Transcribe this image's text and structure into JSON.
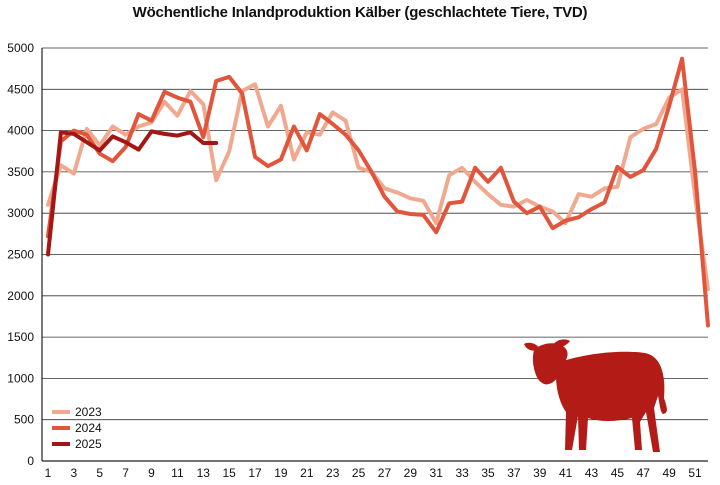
{
  "chart_data": {
    "type": "line",
    "title": "Wöchentliche Inlandproduktion Kälber (geschlachtete Tiere, TVD)",
    "xlabel": "",
    "ylabel": "",
    "ylim": [
      0,
      5000
    ],
    "xlim": [
      1,
      52
    ],
    "y_ticks": [
      0,
      500,
      1000,
      1500,
      2000,
      2500,
      3000,
      3500,
      4000,
      4500,
      5000
    ],
    "x_ticks": [
      1,
      3,
      5,
      7,
      9,
      11,
      13,
      15,
      17,
      19,
      21,
      23,
      25,
      27,
      29,
      31,
      33,
      35,
      37,
      39,
      41,
      43,
      45,
      47,
      49,
      51
    ],
    "grid": "horizontal",
    "legend_position": "bottom-left",
    "series": [
      {
        "name": "2023",
        "color": "#f0a98f",
        "x": [
          1,
          2,
          3,
          4,
          5,
          6,
          7,
          8,
          9,
          10,
          11,
          12,
          13,
          14,
          15,
          16,
          17,
          18,
          19,
          20,
          21,
          22,
          23,
          24,
          25,
          26,
          27,
          28,
          29,
          30,
          31,
          32,
          33,
          34,
          35,
          36,
          37,
          38,
          39,
          40,
          41,
          42,
          43,
          44,
          45,
          46,
          47,
          48,
          49,
          50,
          51,
          52
        ],
        "y": [
          3100,
          3580,
          3480,
          4020,
          3820,
          4050,
          3950,
          4050,
          4100,
          4350,
          4180,
          4480,
          4320,
          3400,
          3750,
          4480,
          4560,
          4050,
          4300,
          3650,
          3980,
          3950,
          4220,
          4120,
          3550,
          3500,
          3300,
          3250,
          3180,
          3150,
          2880,
          3460,
          3550,
          3380,
          3230,
          3100,
          3080,
          3160,
          3080,
          3020,
          2880,
          3230,
          3200,
          3300,
          3320,
          3920,
          4020,
          4080,
          4400,
          4500,
          3200,
          2080
        ]
      },
      {
        "name": "2024",
        "color": "#e0553b",
        "x": [
          1,
          2,
          3,
          4,
          5,
          6,
          7,
          8,
          9,
          10,
          11,
          12,
          13,
          14,
          15,
          16,
          17,
          18,
          19,
          20,
          21,
          22,
          23,
          24,
          25,
          26,
          27,
          28,
          29,
          30,
          31,
          32,
          33,
          34,
          35,
          36,
          37,
          38,
          39,
          40,
          41,
          42,
          43,
          44,
          45,
          46,
          47,
          48,
          49,
          50,
          51,
          52
        ],
        "y": [
          2720,
          3870,
          4000,
          3950,
          3720,
          3630,
          3800,
          4200,
          4120,
          4470,
          4400,
          4350,
          3920,
          4600,
          4650,
          4450,
          3680,
          3570,
          3650,
          4050,
          3760,
          4200,
          4080,
          3950,
          3760,
          3500,
          3200,
          3020,
          2990,
          2980,
          2770,
          3120,
          3140,
          3550,
          3380,
          3550,
          3140,
          3000,
          3080,
          2820,
          2910,
          2950,
          3050,
          3130,
          3560,
          3440,
          3520,
          3780,
          4300,
          4870,
          3500,
          1640
        ]
      },
      {
        "name": "2025",
        "color": "#a31616",
        "x": [
          1,
          2,
          3,
          4,
          5,
          6,
          7,
          8,
          9,
          10,
          11,
          12,
          13,
          14
        ],
        "y": [
          2500,
          3980,
          3960,
          3860,
          3760,
          3930,
          3860,
          3770,
          3990,
          3960,
          3940,
          3980,
          3850,
          3850
        ]
      }
    ]
  },
  "graphic": {
    "icon": "calf-silhouette-icon",
    "color": "#b31b17"
  },
  "colors": {
    "grid": "#333333",
    "axis": "#222222"
  }
}
